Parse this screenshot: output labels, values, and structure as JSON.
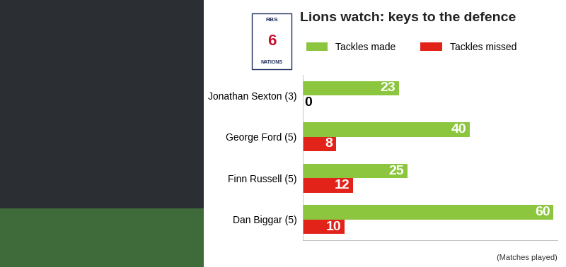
{
  "chart_data": {
    "type": "bar",
    "orientation": "horizontal",
    "title": "Lions watch: keys to the defence",
    "categories": [
      "Jonathan Sexton (3)",
      "George Ford (5)",
      "Finn Russell (5)",
      "Dan Biggar (5)"
    ],
    "series": [
      {
        "name": "Tackles made",
        "color": "#8cc63f",
        "values": [
          23,
          40,
          25,
          60
        ]
      },
      {
        "name": "Tackles missed",
        "color": "#e2231a",
        "values": [
          0,
          8,
          12,
          10
        ]
      }
    ],
    "xlim": [
      0,
      61
    ],
    "data_labels": true,
    "tick_labels": "y",
    "legend": "upper left",
    "annotations": [
      "(Matches played)"
    ],
    "logo": [
      "RBS",
      "6",
      "NATIONS"
    ]
  }
}
